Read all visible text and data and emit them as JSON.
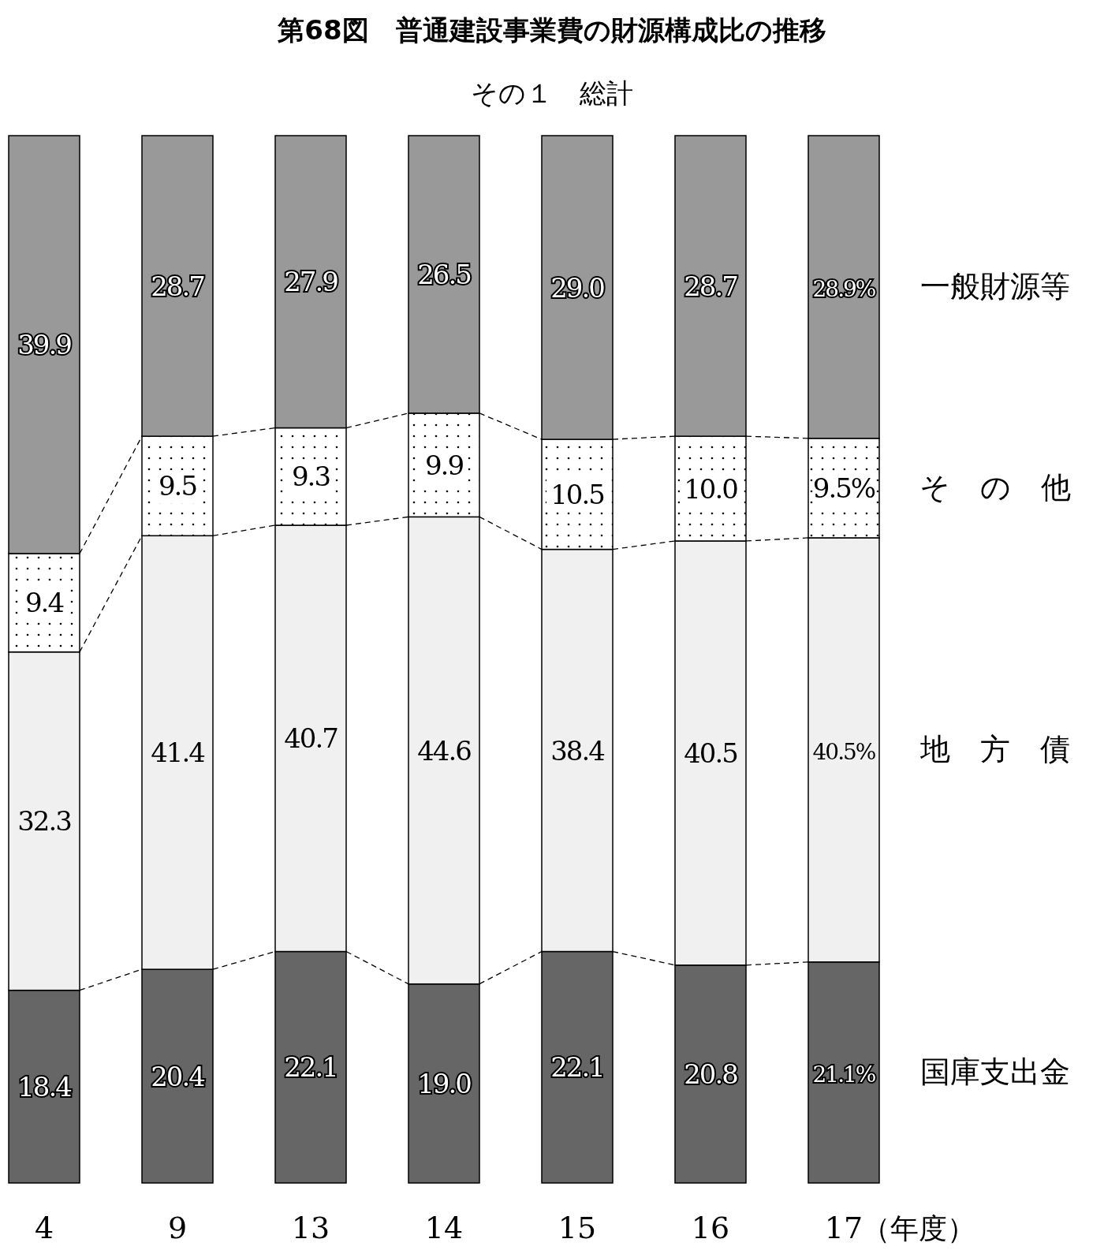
{
  "chart_data": {
    "type": "bar",
    "stacked": true,
    "title": "第68図　普通建設事業費の財源構成比の推移",
    "subtitle": "その１　総計",
    "xlabel": "（年度）",
    "legend": "right",
    "categories": [
      "4",
      "9",
      "13",
      "14",
      "15",
      "16",
      "17"
    ],
    "series": [
      {
        "name": "国庫支出金",
        "color": "#666666",
        "values": [
          18.4,
          20.4,
          22.1,
          19.0,
          22.1,
          20.8,
          21.1
        ],
        "value_labels": [
          "18.4",
          "20.4",
          "22.1",
          "19.0",
          "22.1",
          "20.8",
          "21.1%"
        ]
      },
      {
        "name": "地　方　債",
        "color": "#f0f0f0",
        "values": [
          32.3,
          41.4,
          40.7,
          44.6,
          38.4,
          40.5,
          40.5
        ],
        "value_labels": [
          "32.3",
          "41.4",
          "40.7",
          "44.6",
          "38.4",
          "40.5",
          "40.5%"
        ]
      },
      {
        "name": "そ　の　他",
        "color": "#ffffff",
        "values": [
          9.4,
          9.5,
          9.3,
          9.9,
          10.5,
          10.0,
          9.5
        ],
        "value_labels": [
          "9.4",
          "9.5",
          "9.3",
          "9.9",
          "10.5",
          "10.0",
          "9.5%"
        ]
      },
      {
        "name": "一般財源等",
        "color": "#999999",
        "values": [
          39.9,
          28.7,
          27.9,
          26.5,
          29.0,
          28.7,
          28.9
        ],
        "value_labels": [
          "39.9",
          "28.7",
          "27.9",
          "26.5",
          "29.0",
          "28.7",
          "28.9%"
        ]
      }
    ]
  }
}
